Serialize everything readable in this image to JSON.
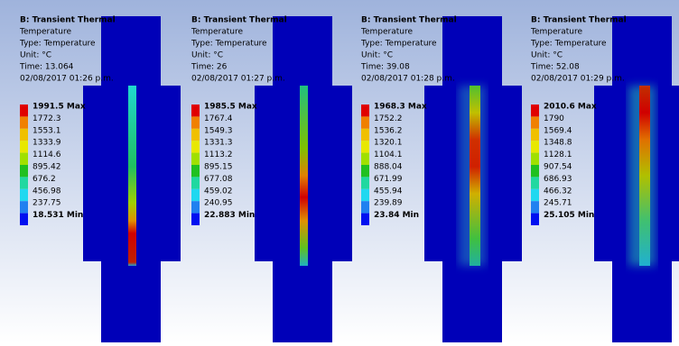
{
  "panels": [
    {
      "lines": [
        "B: Transient Thermal",
        "Temperature",
        "Type: Temperature",
        "Unit: °C",
        "Time: 13.064",
        "02/08/2017 01:26 p.m."
      ],
      "legend": [
        "1991.5 Max",
        "1772.3",
        "1553.1",
        "1333.9",
        "1114.6",
        "895.42",
        "676.2",
        "456.98",
        "237.75",
        "18.531 Min"
      ]
    },
    {
      "lines": [
        "B: Transient Thermal",
        "Temperature",
        "Type: Temperature",
        "Unit: °C",
        "Time: 26",
        "02/08/2017 01:27 p.m."
      ],
      "legend": [
        "1985.5 Max",
        "1767.4",
        "1549.3",
        "1331.3",
        "1113.2",
        "895.15",
        "677.08",
        "459.02",
        "240.95",
        "22.883 Min"
      ]
    },
    {
      "lines": [
        "B: Transient Thermal",
        "Temperature",
        "Type: Temperature",
        "Unit: °C",
        "Time: 39.08",
        "02/08/2017 01:28 p.m."
      ],
      "legend": [
        "1968.3 Max",
        "1752.2",
        "1536.2",
        "1320.1",
        "1104.1",
        "888.04",
        "671.99",
        "455.94",
        "239.89",
        "23.84 Min"
      ]
    },
    {
      "lines": [
        "B: Transient Thermal",
        "Temperature",
        "Type: Temperature",
        "Unit: °C",
        "Time: 52.08",
        "02/08/2017 01:29 p.m."
      ],
      "legend": [
        "2010.6 Max",
        "1790",
        "1569.4",
        "1348.8",
        "1128.1",
        "907.54",
        "686.93",
        "466.32",
        "245.71",
        "25.105 Min"
      ]
    }
  ]
}
